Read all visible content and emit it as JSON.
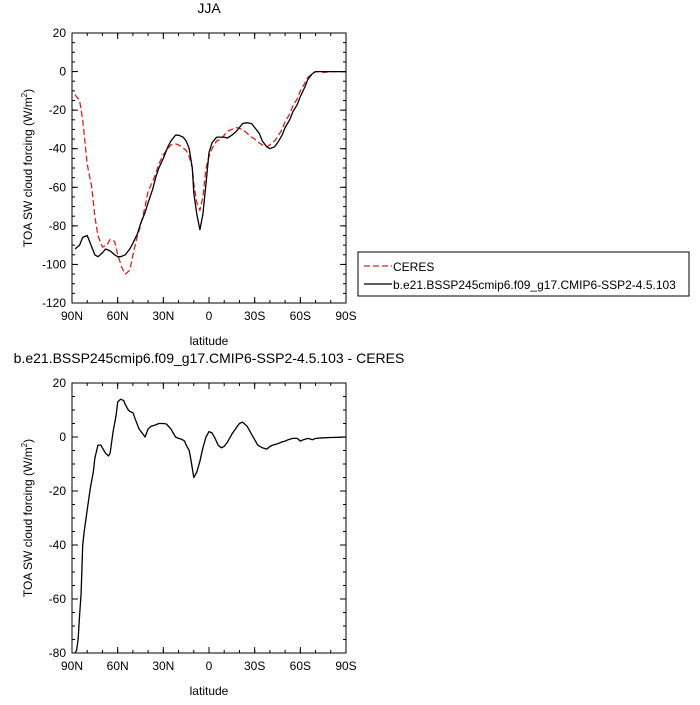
{
  "chart_data": [
    {
      "type": "line",
      "title": "JJA",
      "xlabel": "latitude",
      "ylabel": "TOA SW cloud forcing (W/m",
      "ylabel_sup": "2",
      "ylabel_close": ")",
      "xticks": [
        {
          "x": -90,
          "label": "90N"
        },
        {
          "x": -60,
          "label": "60N"
        },
        {
          "x": -30,
          "label": "30N"
        },
        {
          "x": 0,
          "label": "0"
        },
        {
          "x": 30,
          "label": "30S"
        },
        {
          "x": 60,
          "label": "60S"
        },
        {
          "x": 90,
          "label": "90S"
        }
      ],
      "yticks": [
        20,
        0,
        -20,
        -40,
        -60,
        -80,
        -100,
        -120
      ],
      "xlim": [
        -90,
        90
      ],
      "ylim": [
        -120,
        20
      ],
      "legend_position": "right",
      "series": [
        {
          "name": "CERES",
          "color": "#e0201a",
          "dash": true,
          "x": [
            -88,
            -85,
            -83,
            -80,
            -77,
            -75,
            -73,
            -70,
            -67,
            -65,
            -62,
            -60,
            -57,
            -55,
            -52,
            -50,
            -47,
            -45,
            -42,
            -40,
            -37,
            -35,
            -33,
            -30,
            -27,
            -25,
            -22,
            -20,
            -17,
            -15,
            -13,
            -11,
            -10,
            -8,
            -6,
            -4,
            -2,
            0,
            2,
            5,
            8,
            10,
            12,
            15,
            18,
            20,
            22,
            25,
            28,
            30,
            33,
            35,
            38,
            40,
            43,
            45,
            48,
            50,
            53,
            55,
            58,
            60,
            63,
            65,
            68,
            70,
            73,
            75,
            80,
            85,
            90
          ],
          "y": [
            -12,
            -15,
            -25,
            -48,
            -60,
            -75,
            -85,
            -91,
            -90,
            -87,
            -88,
            -95,
            -102,
            -105,
            -103,
            -95,
            -85,
            -80,
            -70,
            -62,
            -57,
            -53,
            -48,
            -43,
            -40,
            -38,
            -37.5,
            -38,
            -39.5,
            -41,
            -44,
            -50,
            -58,
            -68,
            -72,
            -65,
            -50,
            -44,
            -40,
            -36,
            -35,
            -33,
            -31,
            -30,
            -29,
            -29.5,
            -30,
            -32,
            -34,
            -35,
            -37,
            -38,
            -39,
            -38,
            -36,
            -34,
            -30,
            -26,
            -22,
            -18,
            -14,
            -10,
            -6,
            -3,
            -1,
            0,
            0,
            -0.5,
            0,
            0,
            0
          ]
        },
        {
          "name": "b.e21.BSSP245cmip6.f09_g17.CMIP6-SSP2-4.5.103",
          "color": "#000000",
          "dash": false,
          "x": [
            -88,
            -85,
            -83,
            -80,
            -78,
            -75,
            -73,
            -70,
            -68,
            -65,
            -62,
            -60,
            -58,
            -55,
            -52,
            -50,
            -47,
            -45,
            -42,
            -40,
            -37,
            -35,
            -33,
            -30,
            -27,
            -25,
            -22,
            -20,
            -17,
            -15,
            -13,
            -11,
            -10,
            -8,
            -6,
            -4,
            -2,
            0,
            2,
            5,
            8,
            10,
            12,
            15,
            18,
            20,
            22,
            25,
            28,
            30,
            33,
            35,
            38,
            40,
            43,
            45,
            48,
            50,
            53,
            55,
            58,
            60,
            63,
            65,
            68,
            70,
            73,
            75,
            80,
            85,
            90
          ],
          "y": [
            -92,
            -90,
            -86,
            -85,
            -89,
            -95,
            -96,
            -94,
            -92,
            -93,
            -95,
            -96,
            -96,
            -95,
            -92,
            -89,
            -84,
            -79,
            -73,
            -68,
            -61,
            -55,
            -50,
            -45,
            -39,
            -36,
            -33,
            -33,
            -34,
            -36,
            -40,
            -50,
            -63,
            -74,
            -82,
            -74,
            -58,
            -42,
            -37,
            -34,
            -34,
            -34,
            -34.5,
            -33,
            -31,
            -29,
            -27,
            -26.5,
            -27,
            -29,
            -32,
            -36,
            -39,
            -40,
            -39,
            -37,
            -33,
            -29,
            -25,
            -21,
            -17,
            -13,
            -8,
            -4,
            -1,
            0,
            0,
            0,
            0,
            0,
            0
          ]
        }
      ]
    },
    {
      "type": "line",
      "title": "b.e21.BSSP245cmip6.f09_g17.CMIP6-SSP2-4.5.103 - CERES",
      "xlabel": "latitude",
      "ylabel": "TOA SW cloud forcing (W/m",
      "ylabel_sup": "2",
      "ylabel_close": ")",
      "xticks": [
        {
          "x": -90,
          "label": "90N"
        },
        {
          "x": -60,
          "label": "60N"
        },
        {
          "x": -30,
          "label": "30N"
        },
        {
          "x": 0,
          "label": "0"
        },
        {
          "x": 30,
          "label": "30S"
        },
        {
          "x": 60,
          "label": "60S"
        },
        {
          "x": 90,
          "label": "90S"
        }
      ],
      "yticks": [
        20,
        0,
        -20,
        -40,
        -60,
        -80
      ],
      "xlim": [
        -90,
        90
      ],
      "ylim": [
        -80,
        20
      ],
      "series": [
        {
          "color": "#000000",
          "dash": false,
          "x": [
            -88,
            -87,
            -86,
            -85,
            -84,
            -83,
            -82,
            -80,
            -78,
            -76,
            -75,
            -73,
            -71,
            -70,
            -68,
            -66,
            -65,
            -63,
            -61,
            -60,
            -58,
            -56,
            -55,
            -53,
            -52,
            -50,
            -48,
            -46,
            -44,
            -42,
            -40,
            -38,
            -35,
            -33,
            -30,
            -28,
            -25,
            -22,
            -20,
            -18,
            -16,
            -15,
            -13,
            -12,
            -10,
            -8,
            -6,
            -4,
            -2,
            0,
            2,
            4,
            6,
            8,
            10,
            12,
            15,
            18,
            20,
            22,
            25,
            28,
            30,
            32,
            35,
            38,
            40,
            42,
            45,
            48,
            50,
            52,
            55,
            58,
            60,
            62,
            65,
            68,
            70,
            75,
            80,
            85,
            90
          ],
          "y": [
            -80,
            -79,
            -75,
            -66,
            -58,
            -40,
            -35,
            -27,
            -19,
            -13,
            -8,
            -3,
            -3,
            -4,
            -6,
            -7,
            -6,
            2,
            8,
            13,
            14,
            13.5,
            12,
            10,
            9.5,
            9,
            6,
            3,
            1.5,
            0,
            3,
            4,
            4.5,
            5,
            5,
            4.8,
            3,
            0,
            -0.5,
            -0.8,
            -1.5,
            -3,
            -5,
            -8,
            -15,
            -13,
            -9,
            -4,
            0,
            2,
            1.5,
            -0.5,
            -3,
            -4,
            -3.5,
            -2,
            1,
            3.5,
            5,
            5.5,
            4,
            1,
            -1,
            -3,
            -4,
            -4.5,
            -3.5,
            -3,
            -2.5,
            -1.8,
            -1.5,
            -1,
            -0.5,
            -0.5,
            -1.5,
            -1,
            -0.5,
            -1,
            -0.5,
            -0.3,
            -0.2,
            -0.1,
            0
          ]
        }
      ]
    }
  ]
}
